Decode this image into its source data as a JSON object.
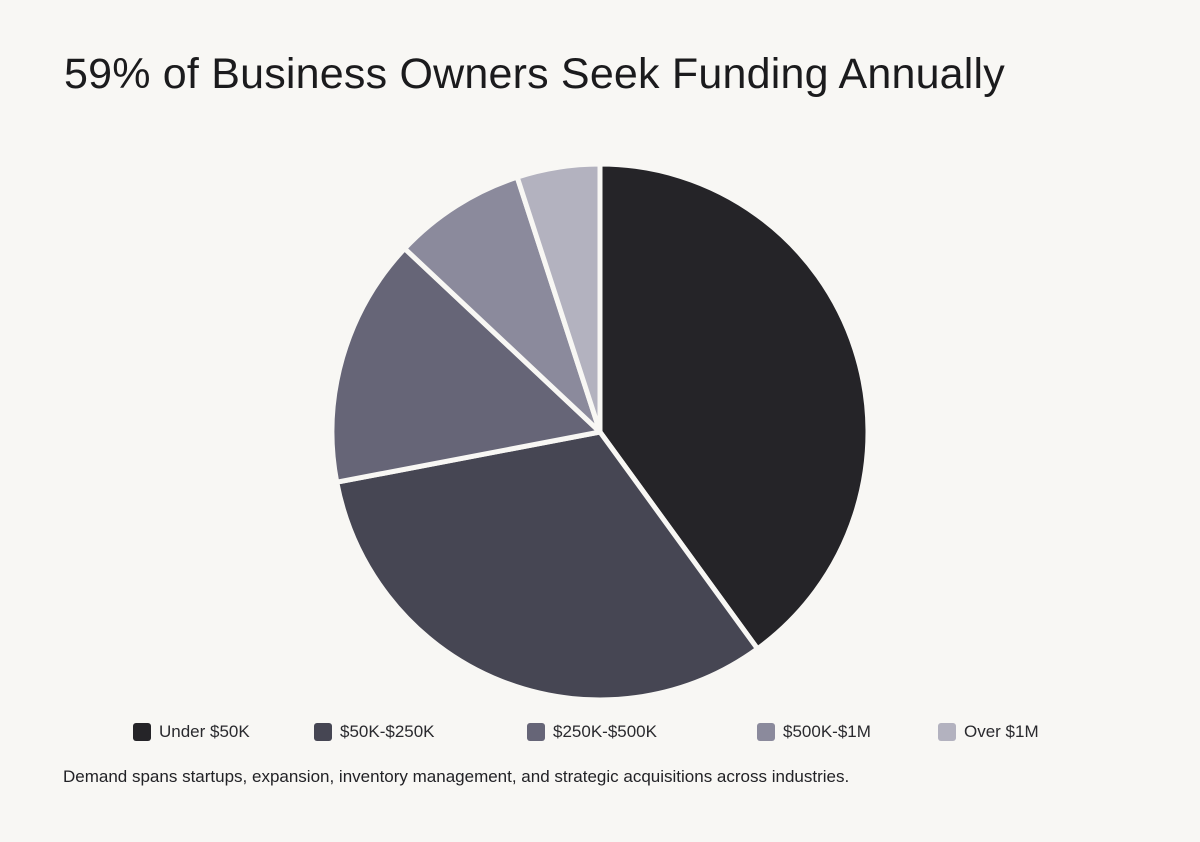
{
  "chart_data": {
    "type": "pie",
    "title": "59% of Business Owners Seek Funding Annually",
    "caption": "Demand spans startups, expansion, inventory management, and strategic acquisitions across industries.",
    "legend_position": "bottom",
    "slices": [
      {
        "label": "Under $50K",
        "value": 40,
        "color": "#252428"
      },
      {
        "label": "$50K-$250K",
        "value": 32,
        "color": "#464653"
      },
      {
        "label": "$250K-$500K",
        "value": 15,
        "color": "#666577"
      },
      {
        "label": "$500K-$1M",
        "value": 8,
        "color": "#8b8a9c"
      },
      {
        "label": "Over $1M",
        "value": 5,
        "color": "#b3b2bf"
      }
    ]
  }
}
